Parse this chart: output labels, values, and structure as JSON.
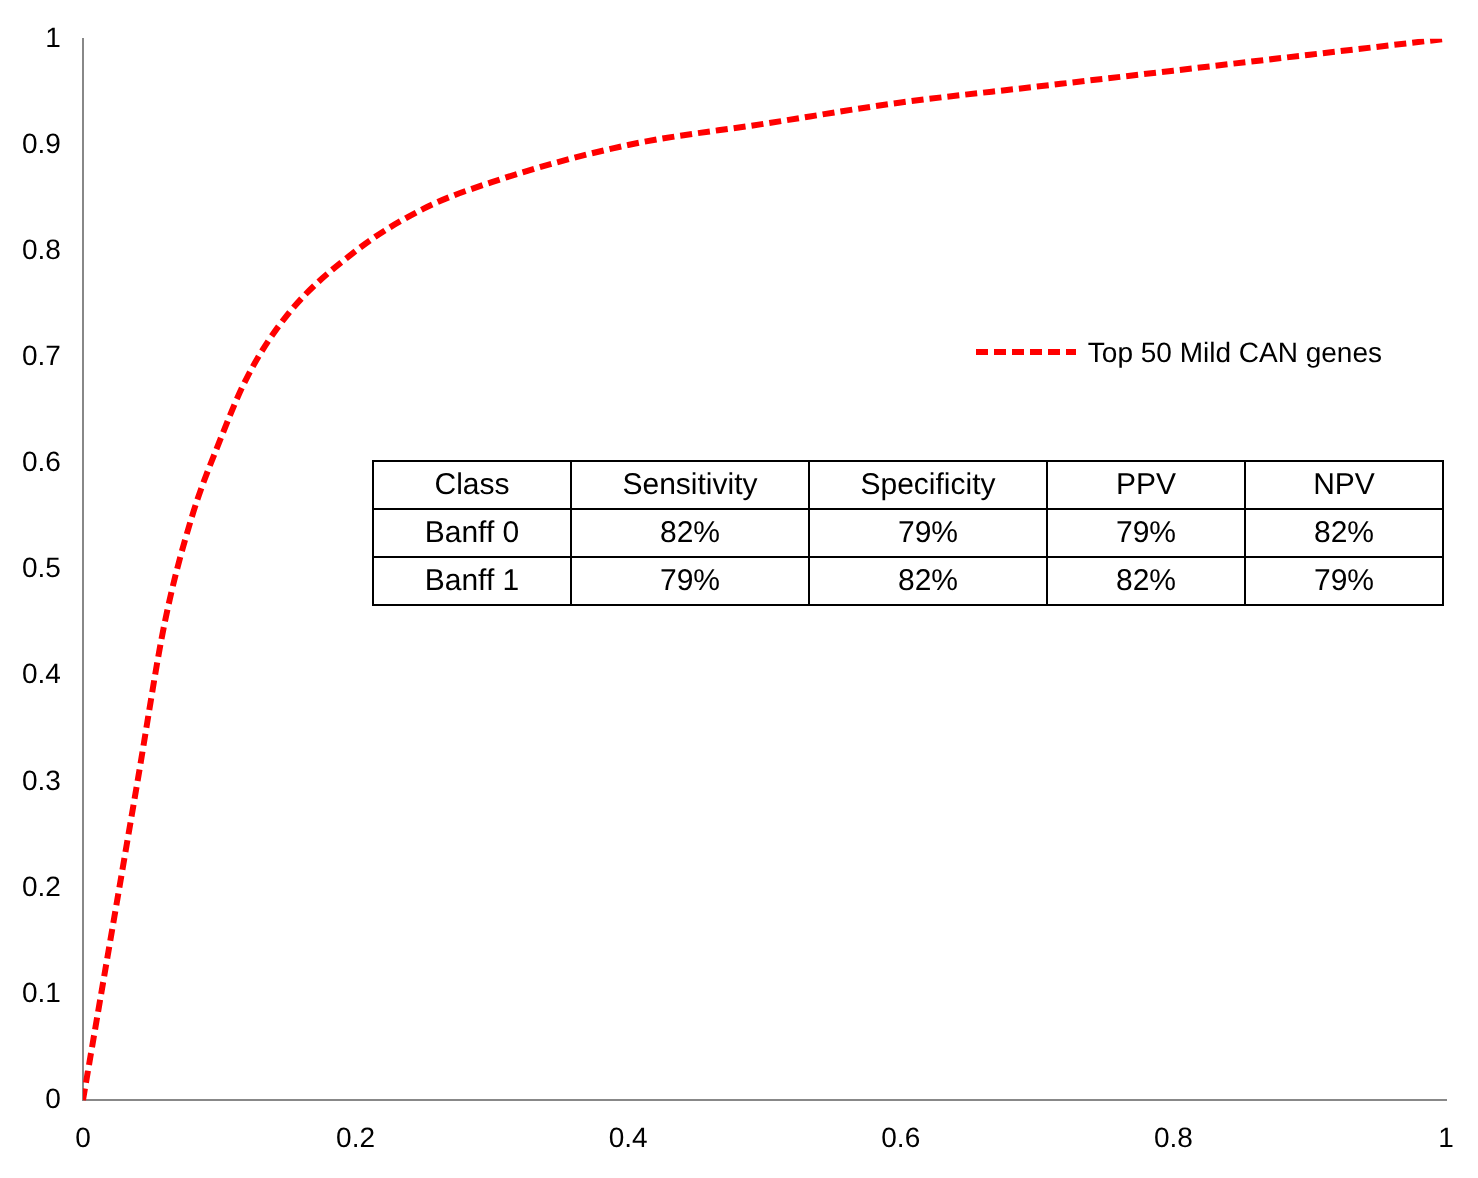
{
  "chart_data": {
    "type": "line",
    "x": [
      0,
      0.02,
      0.04,
      0.06,
      0.08,
      0.1,
      0.12,
      0.15,
      0.2,
      0.25,
      0.3,
      0.4,
      0.5,
      0.6,
      0.7,
      0.8,
      0.9,
      1
    ],
    "series": [
      {
        "name": "Top 50 Mild CAN genes",
        "color": "#ff0000",
        "values": [
          0,
          0.15,
          0.3,
          0.45,
          0.55,
          0.62,
          0.68,
          0.74,
          0.8,
          0.84,
          0.865,
          0.9,
          0.92,
          0.94,
          0.955,
          0.97,
          0.985,
          1
        ]
      }
    ],
    "xlim": [
      0,
      1
    ],
    "xticks": [
      0,
      0.2,
      0.4,
      0.6,
      0.8,
      1
    ],
    "ylim": [
      0,
      1
    ],
    "yticks": [
      0,
      0.1,
      0.2,
      0.3,
      0.4,
      0.5,
      0.6,
      0.7,
      0.8,
      0.9,
      1
    ],
    "grid": false,
    "legend": "right",
    "marker": "none",
    "line_style": "dashed",
    "annotations": [
      "Class",
      "Sensitivity",
      "Specificity",
      "PPV",
      "NPV",
      "Banff 0",
      "82%",
      "79%",
      "79%",
      "82%",
      "Banff 1",
      "79%",
      "82%",
      "82%",
      "79%"
    ]
  }
}
